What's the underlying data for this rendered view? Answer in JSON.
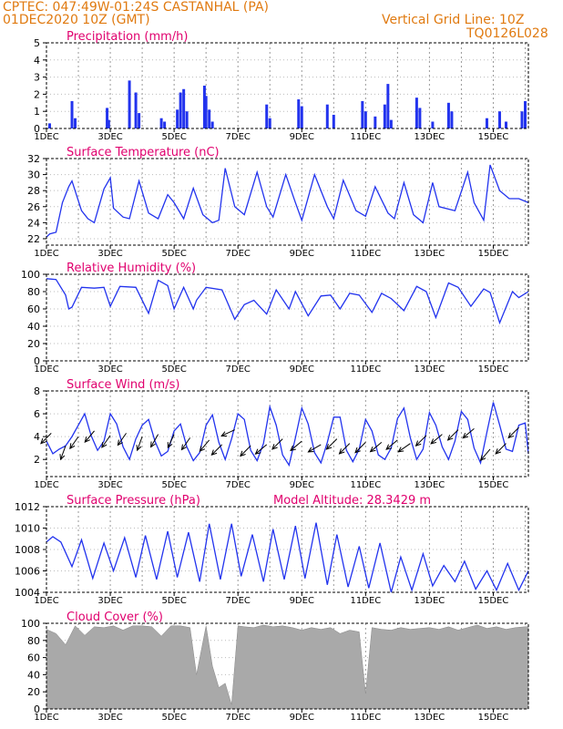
{
  "header": {
    "line1": "CPTEC:   047:49W-01:24S   CASTANHAL (PA)",
    "line2": "01DEC2020 10Z (GMT)",
    "grid_note": "Vertical Grid Line: 10Z",
    "code": "TQ0126L028"
  },
  "colors": {
    "header": "#e07a10",
    "title": "#e0006e",
    "series": "#2233ee",
    "cloud": "#a9a9a9"
  },
  "chart_data": [
    {
      "type": "bar",
      "title": "Precipitation (mm/h)",
      "yticks": [
        "0",
        "1",
        "2",
        "3",
        "4",
        "5"
      ],
      "ylim": [
        0,
        5
      ],
      "xlim": [
        1,
        16.1
      ],
      "bars": [
        [
          1.1,
          0.3
        ],
        [
          1.8,
          1.6
        ],
        [
          1.9,
          0.6
        ],
        [
          2.9,
          1.2
        ],
        [
          2.95,
          0.5
        ],
        [
          3.6,
          2.8
        ],
        [
          3.8,
          2.1
        ],
        [
          3.9,
          0.9
        ],
        [
          4.6,
          0.6
        ],
        [
          4.7,
          0.4
        ],
        [
          5.1,
          1.1
        ],
        [
          5.2,
          2.1
        ],
        [
          5.3,
          2.3
        ],
        [
          5.4,
          1.0
        ],
        [
          5.95,
          2.5
        ],
        [
          6.0,
          1.9
        ],
        [
          6.1,
          1.1
        ],
        [
          6.2,
          0.4
        ],
        [
          7.9,
          1.4
        ],
        [
          8.0,
          0.6
        ],
        [
          8.9,
          1.7
        ],
        [
          9.0,
          1.3
        ],
        [
          9.8,
          1.4
        ],
        [
          10.0,
          0.8
        ],
        [
          10.9,
          1.6
        ],
        [
          11.0,
          1.0
        ],
        [
          11.3,
          0.7
        ],
        [
          11.6,
          1.4
        ],
        [
          11.7,
          2.6
        ],
        [
          11.8,
          0.5
        ],
        [
          12.6,
          1.8
        ],
        [
          12.7,
          1.2
        ],
        [
          13.1,
          0.4
        ],
        [
          13.6,
          1.5
        ],
        [
          13.7,
          1.0
        ],
        [
          14.8,
          0.6
        ],
        [
          15.2,
          1.0
        ],
        [
          15.4,
          0.4
        ],
        [
          15.9,
          1.0
        ],
        [
          16.0,
          1.6
        ]
      ],
      "xticks": [
        "1DEC",
        "3DEC",
        "5DEC",
        "7DEC",
        "9DEC",
        "11DEC",
        "13DEC",
        "15DEC"
      ]
    },
    {
      "type": "line",
      "title": "Surface Temperature (nC)",
      "yticks": [
        "22",
        "24",
        "26",
        "28",
        "30",
        "32"
      ],
      "ylim": [
        21.2,
        32
      ],
      "xlim": [
        1,
        16.1
      ],
      "x": [
        1.0,
        1.1,
        1.3,
        1.5,
        1.7,
        1.8,
        2.1,
        2.3,
        2.5,
        2.8,
        3.0,
        3.1,
        3.4,
        3.6,
        3.9,
        4.2,
        4.5,
        4.8,
        5.0,
        5.3,
        5.6,
        5.9,
        6.2,
        6.4,
        6.6,
        6.9,
        7.2,
        7.6,
        7.9,
        8.1,
        8.5,
        8.8,
        9.0,
        9.4,
        9.8,
        10.0,
        10.3,
        10.7,
        11.0,
        11.3,
        11.7,
        11.9,
        12.2,
        12.5,
        12.8,
        13.1,
        13.3,
        13.8,
        14.2,
        14.4,
        14.7,
        14.9,
        15.2,
        15.5,
        15.8,
        16.1
      ],
      "y": [
        22.2,
        22.6,
        22.8,
        26.5,
        28.5,
        29.2,
        25.5,
        24.5,
        24.0,
        28.2,
        29.6,
        25.8,
        24.7,
        24.5,
        29.2,
        25.2,
        24.5,
        27.5,
        26.5,
        24.5,
        28.3,
        25.0,
        24.0,
        24.3,
        30.8,
        26.0,
        25.0,
        30.3,
        26.0,
        24.7,
        30.0,
        26.5,
        24.3,
        30.0,
        26.0,
        24.5,
        29.3,
        25.5,
        24.8,
        28.5,
        25.2,
        24.5,
        29.0,
        25.0,
        24.0,
        29.0,
        26.0,
        25.5,
        30.3,
        26.5,
        24.3,
        31.2,
        28.0,
        27.0,
        27.0,
        26.5
      ]
    },
    {
      "type": "line",
      "title": "Relative Humidity (%)",
      "yticks": [
        "0",
        "20",
        "40",
        "60",
        "80",
        "100"
      ],
      "ylim": [
        0,
        100
      ],
      "xlim": [
        1,
        16.1
      ],
      "x": [
        1.0,
        1.3,
        1.6,
        1.7,
        1.8,
        2.1,
        2.5,
        2.8,
        3.0,
        3.3,
        3.8,
        4.2,
        4.5,
        4.8,
        5.0,
        5.3,
        5.6,
        5.7,
        6.0,
        6.5,
        6.9,
        7.2,
        7.5,
        7.9,
        8.2,
        8.6,
        8.8,
        9.2,
        9.6,
        9.9,
        10.2,
        10.5,
        10.8,
        11.2,
        11.5,
        11.8,
        12.2,
        12.6,
        12.9,
        13.2,
        13.6,
        13.9,
        14.3,
        14.7,
        14.9,
        15.2,
        15.6,
        15.8,
        16.1
      ],
      "y": [
        95,
        94,
        76,
        60,
        62,
        85,
        84,
        85,
        63,
        86,
        85,
        55,
        93,
        87,
        60,
        85,
        60,
        70,
        85,
        82,
        48,
        65,
        70,
        54,
        82,
        60,
        80,
        52,
        75,
        76,
        60,
        78,
        76,
        56,
        78,
        72,
        58,
        86,
        80,
        50,
        90,
        85,
        63,
        83,
        79,
        44,
        80,
        73,
        80
      ]
    },
    {
      "type": "line",
      "title": "Surface Wind (m/s)",
      "yticks": [
        "2",
        "4",
        "6",
        "8"
      ],
      "ylim": [
        0.5,
        8
      ],
      "xlim": [
        1,
        16.1
      ],
      "x": [
        1.0,
        1.2,
        1.4,
        1.6,
        1.8,
        2.0,
        2.2,
        2.4,
        2.6,
        2.8,
        3.0,
        3.2,
        3.4,
        3.6,
        3.8,
        4.0,
        4.2,
        4.4,
        4.6,
        4.8,
        5.0,
        5.2,
        5.4,
        5.6,
        5.8,
        6.0,
        6.2,
        6.4,
        6.6,
        6.8,
        7.0,
        7.2,
        7.4,
        7.6,
        7.8,
        8.0,
        8.2,
        8.4,
        8.6,
        8.8,
        9.0,
        9.2,
        9.4,
        9.6,
        9.8,
        10.0,
        10.2,
        10.4,
        10.6,
        10.8,
        11.0,
        11.2,
        11.4,
        11.6,
        11.8,
        12.0,
        12.2,
        12.4,
        12.6,
        12.8,
        13.0,
        13.2,
        13.4,
        13.6,
        13.8,
        14.0,
        14.2,
        14.4,
        14.6,
        14.8,
        15.0,
        15.2,
        15.4,
        15.6,
        15.8,
        16.0,
        16.1
      ],
      "y": [
        3.6,
        2.5,
        2.9,
        3.2,
        4.0,
        5.0,
        6.0,
        4.1,
        2.8,
        3.6,
        6.0,
        5.1,
        3.1,
        2.0,
        3.8,
        5.0,
        5.5,
        3.6,
        2.3,
        2.7,
        4.5,
        5.1,
        3.1,
        1.9,
        2.6,
        5.0,
        5.9,
        3.5,
        2.0,
        3.8,
        6.0,
        5.5,
        2.8,
        1.9,
        3.4,
        6.6,
        5.0,
        2.4,
        1.5,
        3.9,
        6.5,
        5.1,
        2.6,
        1.7,
        3.5,
        5.7,
        5.7,
        2.8,
        1.8,
        2.9,
        5.5,
        4.5,
        2.4,
        2.0,
        3.0,
        5.6,
        6.5,
        3.9,
        2.0,
        2.9,
        6.1,
        5.0,
        3.1,
        2.0,
        3.6,
        6.2,
        5.5,
        3.0,
        1.7,
        4.4,
        7.0,
        5.0,
        2.9,
        2.7,
        5.0,
        5.2,
        2.5
      ],
      "arrows": [
        [
          1.15,
          4.3,
          225
        ],
        [
          1.6,
          3.2,
          200
        ],
        [
          2.0,
          4.0,
          215
        ],
        [
          2.5,
          4.5,
          220
        ],
        [
          3.0,
          4.1,
          215
        ],
        [
          3.5,
          4.3,
          215
        ],
        [
          4.0,
          4.0,
          200
        ],
        [
          4.5,
          4.2,
          210
        ],
        [
          5.0,
          4.2,
          205
        ],
        [
          5.5,
          3.9,
          215
        ],
        [
          6.1,
          3.7,
          220
        ],
        [
          6.5,
          3.3,
          225
        ],
        [
          6.9,
          4.6,
          245
        ],
        [
          7.4,
          3.2,
          225
        ],
        [
          7.9,
          3.3,
          230
        ],
        [
          8.4,
          3.8,
          225
        ],
        [
          9.0,
          3.6,
          230
        ],
        [
          9.6,
          3.3,
          240
        ],
        [
          10.1,
          3.8,
          225
        ],
        [
          10.5,
          3.4,
          225
        ],
        [
          11.0,
          3.5,
          225
        ],
        [
          11.5,
          3.5,
          230
        ],
        [
          12.0,
          3.7,
          230
        ],
        [
          12.4,
          3.4,
          235
        ],
        [
          12.9,
          4.1,
          225
        ],
        [
          13.4,
          4.2,
          230
        ],
        [
          13.9,
          4.6,
          225
        ],
        [
          14.4,
          4.7,
          230
        ],
        [
          14.9,
          2.9,
          220
        ],
        [
          15.4,
          3.4,
          225
        ],
        [
          15.8,
          4.8,
          225
        ]
      ]
    },
    {
      "type": "line",
      "title": "Surface Pressure (hPa)",
      "annotation": "Model Altitude: 28.3429 m",
      "yticks": [
        "1004",
        "1006",
        "1008",
        "1010",
        "1012"
      ],
      "ylim": [
        1004,
        1012
      ],
      "xlim": [
        1,
        16.1
      ],
      "x": [
        1.0,
        1.2,
        1.45,
        1.8,
        2.1,
        2.45,
        2.8,
        3.1,
        3.45,
        3.8,
        4.1,
        4.45,
        4.8,
        5.1,
        5.45,
        5.8,
        6.1,
        6.45,
        6.8,
        7.1,
        7.45,
        7.8,
        8.1,
        8.45,
        8.8,
        9.1,
        9.45,
        9.8,
        10.1,
        10.45,
        10.8,
        11.1,
        11.45,
        11.8,
        12.1,
        12.45,
        12.8,
        13.1,
        13.45,
        13.8,
        14.1,
        14.45,
        14.8,
        15.1,
        15.45,
        15.8,
        16.1
      ],
      "y": [
        1008.7,
        1009.2,
        1008.7,
        1006.4,
        1008.9,
        1005.3,
        1008.6,
        1006.0,
        1009.1,
        1005.4,
        1009.3,
        1005.2,
        1009.7,
        1005.4,
        1009.6,
        1005.0,
        1010.4,
        1005.2,
        1010.4,
        1005.5,
        1009.4,
        1005.0,
        1009.9,
        1005.2,
        1010.2,
        1005.3,
        1010.5,
        1004.7,
        1009.4,
        1004.5,
        1008.3,
        1004.4,
        1008.6,
        1004.0,
        1007.3,
        1004.2,
        1007.6,
        1004.6,
        1006.5,
        1005.0,
        1006.9,
        1004.3,
        1006.0,
        1004.2,
        1006.7,
        1004.2,
        1006.0
      ]
    },
    {
      "type": "area",
      "title": "Cloud Cover (%)",
      "yticks": [
        "0",
        "20",
        "40",
        "60",
        "80",
        "100"
      ],
      "ylim": [
        0,
        100
      ],
      "xlim": [
        1,
        16.1
      ],
      "x": [
        1.0,
        1.3,
        1.6,
        1.9,
        2.2,
        2.5,
        2.8,
        3.1,
        3.4,
        3.7,
        4.0,
        4.3,
        4.6,
        4.9,
        5.2,
        5.5,
        5.7,
        6.0,
        6.2,
        6.4,
        6.6,
        6.8,
        7.0,
        7.2,
        7.5,
        7.8,
        8.1,
        8.4,
        8.7,
        9.0,
        9.3,
        9.6,
        9.9,
        10.2,
        10.5,
        10.8,
        11.0,
        11.2,
        11.5,
        11.8,
        12.1,
        12.4,
        12.7,
        13.0,
        13.3,
        13.6,
        13.9,
        14.2,
        14.5,
        14.8,
        15.1,
        15.4,
        15.7,
        16.0,
        16.1
      ],
      "y": [
        93,
        88,
        75,
        97,
        86,
        96,
        95,
        97,
        92,
        97,
        97,
        96,
        85,
        97,
        97,
        95,
        40,
        97,
        50,
        25,
        30,
        5,
        97,
        96,
        95,
        98,
        96,
        97,
        95,
        92,
        95,
        93,
        95,
        88,
        92,
        90,
        18,
        95,
        93,
        92,
        95,
        93,
        94,
        95,
        93,
        96,
        92,
        95,
        98,
        94,
        96,
        93,
        95,
        96,
        96
      ]
    }
  ]
}
